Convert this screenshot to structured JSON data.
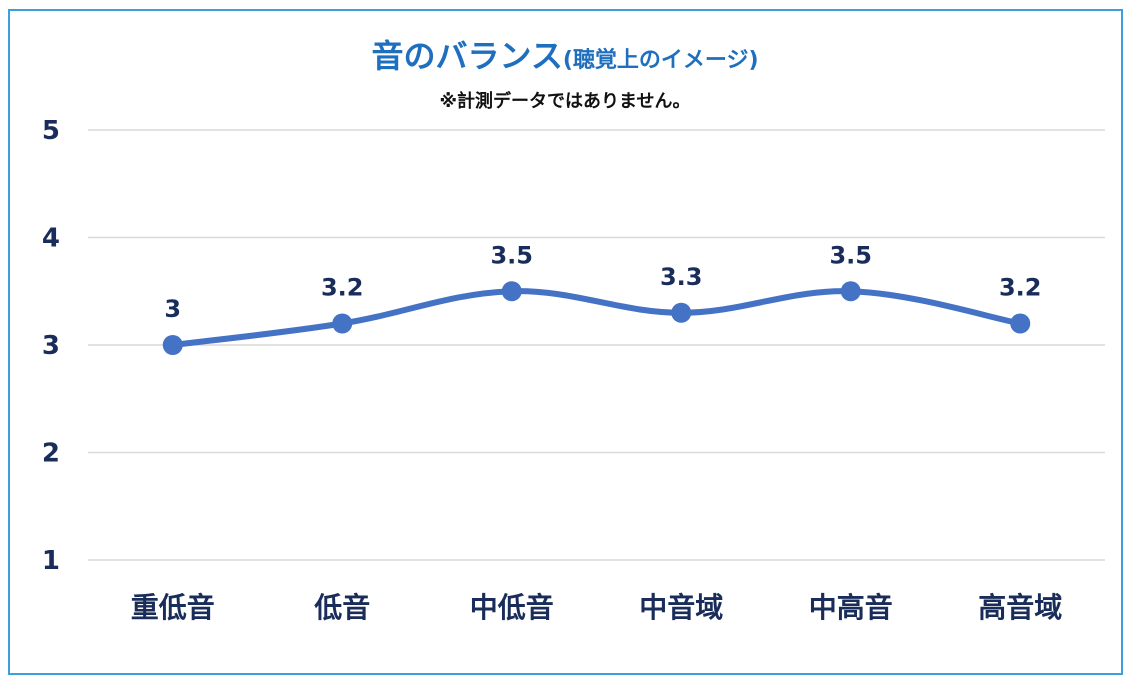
{
  "chart_data": {
    "type": "line",
    "title": "音のバランス",
    "title_suffix": "(聴覚上のイメージ)",
    "subtitle": "※計測データではありません。",
    "categories": [
      "重低音",
      "低音",
      "中低音",
      "中音域",
      "中高音",
      "高音域"
    ],
    "series": [
      {
        "values": [
          3,
          3.2,
          3.5,
          3.3,
          3.5,
          3.2
        ],
        "labels": [
          "3",
          "3.2",
          "3.5",
          "3.3",
          "3.5",
          "3.2"
        ],
        "color": "#4472c4"
      }
    ],
    "yticks": [
      "1",
      "2",
      "3",
      "4",
      "5"
    ],
    "ylim": [
      1,
      5
    ],
    "grid": true,
    "smooth": true,
    "legend": "none",
    "colors": {
      "frame": "#3ea0d9",
      "title": "#1f6fbf",
      "grid": "#d9d9d9",
      "text": "#1a2d5a"
    }
  }
}
